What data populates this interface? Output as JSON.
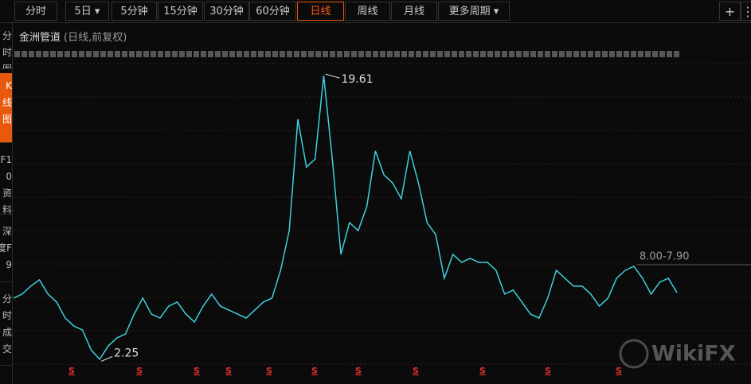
{
  "toolbar": {
    "tabs": [
      "分时",
      "5日 ▾",
      "5分钟",
      "15分钟",
      "30分钟",
      "60分钟",
      "日线",
      "周线",
      "月线",
      "更多周期 ▾"
    ],
    "actions": [
      "+",
      "⋮"
    ]
  },
  "side_tabs": [
    "分时图",
    "K线图",
    "F10资料",
    "深度F9",
    "分时成交"
  ],
  "header": {
    "name": "金洲管道",
    "mode": "(日线,前复权)"
  },
  "chart_data": {
    "type": "line",
    "color": "#3ecfdc",
    "categories": [
      null,
      null,
      null,
      null,
      null,
      null,
      null,
      null,
      null,
      null,
      null,
      null,
      null,
      null,
      null,
      null,
      null,
      null,
      null,
      null,
      null,
      null,
      null,
      null,
      null,
      null,
      null,
      null,
      null,
      null,
      null,
      null,
      null,
      null,
      null,
      null,
      null,
      null,
      null,
      null,
      null,
      null,
      null,
      null,
      null,
      null,
      null,
      null,
      null,
      null,
      null,
      null,
      null,
      null,
      null,
      null,
      null,
      null,
      null,
      null,
      null,
      null,
      null,
      null,
      null,
      null,
      null,
      null,
      null,
      null,
      null,
      null,
      null,
      null,
      null,
      null,
      null,
      null
    ],
    "values": [
      6.07,
      6.31,
      6.79,
      7.17,
      6.31,
      5.83,
      4.86,
      4.38,
      4.14,
      2.94,
      2.37,
      3.18,
      3.66,
      3.9,
      5.1,
      6.07,
      5.1,
      4.86,
      5.58,
      5.83,
      5.1,
      4.62,
      5.58,
      6.31,
      5.58,
      5.34,
      5.1,
      4.86,
      5.34,
      5.83,
      6.07,
      7.75,
      10.15,
      16.88,
      13.99,
      14.47,
      19.52,
      14.47,
      8.71,
      10.63,
      10.15,
      11.59,
      14.96,
      13.51,
      13.03,
      12.07,
      14.96,
      13.03,
      10.63,
      9.91,
      7.27,
      8.71,
      8.23,
      8.47,
      8.23,
      8.23,
      7.75,
      6.31,
      6.55,
      5.83,
      5.1,
      4.86,
      6.07,
      7.75,
      7.27,
      6.79,
      6.79,
      6.31,
      5.58,
      6.07,
      7.27,
      7.75,
      7.99,
      7.27,
      6.31,
      7.03,
      7.27,
      6.4
    ],
    "ylim": [
      1.5,
      21.3
    ],
    "high_mark": 19.61,
    "low_mark": 2.25,
    "range_label": "8.00-7.90",
    "signal_label": "S",
    "watermark": "WikiFX"
  }
}
